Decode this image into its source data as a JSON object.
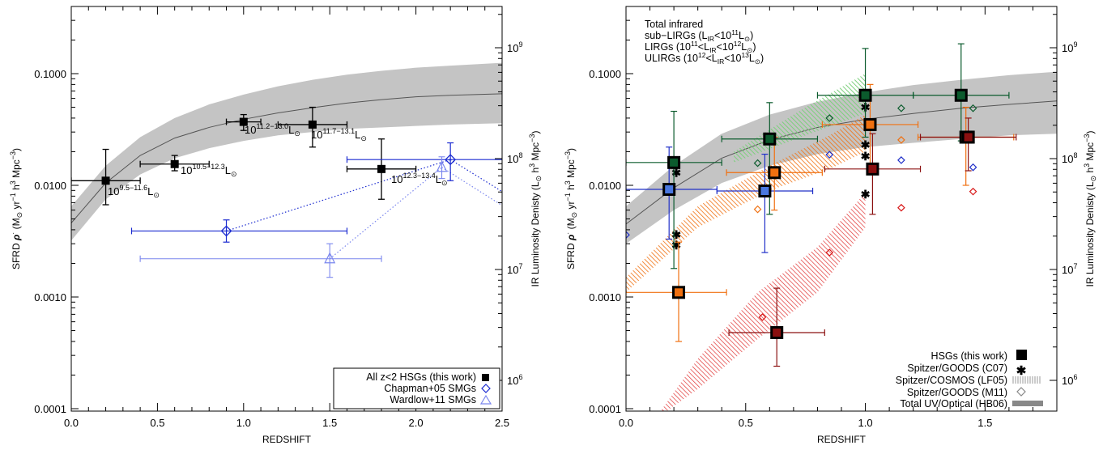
{
  "figure": {
    "left_xlabel": "REDSHIFT",
    "right_xlabel": "REDSHIFT",
    "ylabel": "SFRD",
    "ylabel_rho": "ρ",
    "ylabel_units": "(M",
    "ylabel_units2": " yr",
    "ylabel_units3": " h",
    "ylabel_units4": " Mpc",
    "y2label": "IR Luminosity Denisty (L",
    "y2label_units": " h",
    "y2label_units2": " Mpc",
    "sup_minus1": "−1",
    "sup_3": "3",
    "sup_minus3": "−3",
    "sun": "⊙",
    "sfrd_ticks": [
      "0.1000",
      "0.0100",
      "0.0010",
      "0.0001"
    ],
    "lum_ticks": [
      "10",
      "10",
      "10",
      "10"
    ],
    "lum_exps": [
      "9",
      "8",
      "7",
      "6"
    ],
    "left_xticks": [
      "0.0",
      "0.5",
      "1.0",
      "1.5",
      "2.0",
      "2.5"
    ],
    "right_xticks": [
      "0.0",
      "0.5",
      "1.0",
      "1.5"
    ]
  },
  "left_annotations": [
    {
      "base": "10",
      "sup": "9.5−11.6",
      "tail": "L"
    },
    {
      "base": "10",
      "sup": "10.5−12.3",
      "tail": "L"
    },
    {
      "base": "10",
      "sup": "11.2−13.0",
      "tail": "L"
    },
    {
      "base": "10",
      "sup": "11.7−13.1",
      "tail": "L"
    },
    {
      "base": "10",
      "sup": "12.3−13.4",
      "tail": "L"
    }
  ],
  "left_legend": {
    "all": "All z<2 HSGs (this work)",
    "chapman": "Chapman+05 SMGs",
    "wardlow": "Wardlow+11 SMGs"
  },
  "right_legend_top": {
    "total": "Total infrared",
    "sub_pre": "sub−LIRGs (L",
    "sub_mid": "<10",
    "sub_exp": "11",
    "sub_post": "L",
    "lirg_pre": "LIRGs (10",
    "lirg_exp1": "11",
    "lirg_mid": "<L",
    "lirg_mid2": "<10",
    "lirg_exp2": "12",
    "lirg_post": "L",
    "ulirg_pre": "ULIRGs (10",
    "ulirg_exp1": "12",
    "ulirg_mid": "<L",
    "ulirg_mid2": "<10",
    "ulirg_exp2": "13",
    "ulirg_post": "L",
    "ir_sub": "IR",
    "close": ")"
  },
  "right_legend_bottom": {
    "hsg": "HSGs (this work)",
    "c07": "Spitzer/GOODS (C07)",
    "lf05": "Spitzer/COSMOS (LF05)",
    "m11": "Spitzer/GOODS (M11)",
    "hb06": "Total UV/Optical (HB06)"
  },
  "colors": {
    "total": "#0b5b2d",
    "sub": "#2030c8",
    "lirg": "#f07010",
    "ulirg": "#d81818",
    "ulirg_dark": "#8b1010",
    "chapman": "#1a2ad0",
    "wardlow": "#7a86ee",
    "band": "#c4c4c4",
    "hsg_blue": "#4a78e0"
  },
  "chart_data": [
    {
      "type": "scatter",
      "xlabel": "REDSHIFT",
      "ylabel": "SFRD ρ (M⊙ yr−1 h3 Mpc−3)",
      "y2label": "IR Luminosity Denisty (L⊙ h3 Mpc−3)",
      "xlim": [
        0.0,
        2.5
      ],
      "ylim": [
        7e-05,
        0.4
      ],
      "yscale": "log",
      "band": {
        "x": [
          0.0,
          0.2,
          0.4,
          0.6,
          0.8,
          1.0,
          1.2,
          1.4,
          1.6,
          1.8,
          2.0,
          2.2,
          2.5
        ],
        "lower": [
          0.0032,
          0.0075,
          0.0125,
          0.0175,
          0.0215,
          0.025,
          0.028,
          0.03,
          0.032,
          0.033,
          0.034,
          0.035,
          0.036
        ],
        "upper": [
          0.0065,
          0.015,
          0.027,
          0.04,
          0.053,
          0.065,
          0.077,
          0.088,
          0.098,
          0.106,
          0.113,
          0.118,
          0.125
        ],
        "median": [
          0.0046,
          0.0105,
          0.0185,
          0.0265,
          0.033,
          0.039,
          0.0445,
          0.0495,
          0.0545,
          0.0585,
          0.062,
          0.064,
          0.066
        ]
      },
      "series": [
        {
          "name": "All z<2 HSGs (this work)",
          "points": [
            {
              "x": 0.2,
              "y": 0.011,
              "xerr": [
                0.2,
                0.2
              ],
              "yerr": [
                0.0067,
                0.021
              ]
            },
            {
              "x": 0.6,
              "y": 0.0155,
              "xerr": [
                0.2,
                0.2
              ],
              "yerr": [
                0.0135,
                0.0185
              ]
            },
            {
              "x": 1.0,
              "y": 0.037,
              "xerr": [
                0.1,
                0.1
              ],
              "yerr": [
                0.031,
                0.043
              ]
            },
            {
              "x": 1.4,
              "y": 0.035,
              "xerr": [
                0.2,
                0.2
              ],
              "yerr": [
                0.022,
                0.05
              ]
            },
            {
              "x": 1.8,
              "y": 0.014,
              "xerr": [
                0.2,
                0.2
              ],
              "yerr": [
                0.0075,
                0.026
              ]
            }
          ]
        },
        {
          "name": "Chapman+05 SMGs",
          "points": [
            {
              "x": 0.9,
              "y": 0.0039,
              "xerr": [
                0.55,
                0.7
              ],
              "yerr": [
                0.0031,
                0.0049
              ]
            },
            {
              "x": 2.2,
              "y": 0.017,
              "xerr": [
                0.6,
                0.6
              ],
              "yerr": [
                0.011,
                0.024
              ]
            }
          ]
        },
        {
          "name": "Wardlow+11 SMGs",
          "points": [
            {
              "x": 1.5,
              "y": 0.0022,
              "xerr": [
                1.1,
                0.3
              ],
              "yerr": [
                0.0015,
                0.003
              ]
            },
            {
              "x": 2.15,
              "y": 0.0145,
              "xerr": [
                0.0,
                0.0
              ],
              "yerr": [
                0.0115,
                0.018
              ]
            }
          ]
        }
      ]
    },
    {
      "type": "scatter",
      "xlabel": "REDSHIFT",
      "ylabel": "SFRD ρ (M⊙ yr−1 h3 Mpc−3)",
      "y2label": "IR Luminosity Denisty (L⊙ h3 Mpc−3)",
      "xlim": [
        0.0,
        1.8
      ],
      "ylim": [
        7e-05,
        0.4
      ],
      "yscale": "log",
      "band": {
        "x": [
          0.0,
          0.2,
          0.4,
          0.6,
          0.8,
          1.0,
          1.2,
          1.4,
          1.6,
          1.8
        ],
        "lower": [
          0.003,
          0.006,
          0.0105,
          0.015,
          0.019,
          0.022,
          0.024,
          0.026,
          0.028,
          0.029
        ],
        "upper": [
          0.0065,
          0.015,
          0.029,
          0.043,
          0.056,
          0.068,
          0.079,
          0.088,
          0.097,
          0.104
        ],
        "median": [
          0.0045,
          0.0095,
          0.0175,
          0.0255,
          0.033,
          0.039,
          0.044,
          0.049,
          0.053,
          0.057
        ]
      },
      "series": [
        {
          "name": "Total infrared",
          "points": [
            {
              "x": 0.2,
              "y": 0.016,
              "xerr": [
                0.2,
                0.2
              ],
              "yerr": [
                0.0018,
                0.046
              ]
            },
            {
              "x": 0.6,
              "y": 0.026,
              "xerr": [
                0.2,
                0.2
              ],
              "yerr": [
                0.0055,
                0.055
              ]
            },
            {
              "x": 1.0,
              "y": 0.064,
              "xerr": [
                0.2,
                0.2
              ],
              "yerr": [
                0.027,
                0.168
              ]
            },
            {
              "x": 1.4,
              "y": 0.064,
              "xerr": [
                0.2,
                0.2
              ],
              "yerr": [
                0.025,
                0.185
              ]
            }
          ]
        },
        {
          "name": "sub−LIRGs",
          "points": [
            {
              "x": 0.18,
              "y": 0.0092,
              "xerr": [
                0.18,
                0.2
              ],
              "yerr": [
                0.0033,
                0.022
              ]
            },
            {
              "x": 0.58,
              "y": 0.0089,
              "xerr": [
                0.2,
                0.2
              ],
              "yerr": [
                0.0025,
                0.019
              ]
            }
          ]
        },
        {
          "name": "LIRGs",
          "points": [
            {
              "x": 0.22,
              "y": 0.0011,
              "xerr": [
                0.22,
                0.2
              ],
              "yerr": [
                0.0004,
                0.0031
              ]
            },
            {
              "x": 0.62,
              "y": 0.013,
              "xerr": [
                0.2,
                0.2
              ],
              "yerr": [
                0.006,
                0.027
              ]
            },
            {
              "x": 1.02,
              "y": 0.035,
              "xerr": [
                0.2,
                0.2
              ],
              "yerr": [
                0.013,
                0.08
              ]
            },
            {
              "x": 1.42,
              "y": 0.027,
              "xerr": [
                0.2,
                0.2
              ],
              "yerr": [
                0.01,
                0.05
              ]
            }
          ]
        },
        {
          "name": "ULIRGs",
          "points": [
            {
              "x": 0.63,
              "y": 0.00048,
              "xerr": [
                0.2,
                0.2
              ],
              "yerr": [
                0.00024,
                0.0012
              ]
            },
            {
              "x": 1.03,
              "y": 0.014,
              "xerr": [
                0.2,
                0.2
              ],
              "yerr": [
                0.0055,
                0.029
              ]
            },
            {
              "x": 1.43,
              "y": 0.027,
              "xerr": [
                0.2,
                0.2
              ],
              "yerr": [
                0.0135,
                0.04
              ]
            }
          ]
        },
        {
          "name": "Spitzer/GOODS (C07)",
          "points": [
            {
              "x": 0.21,
              "y": 0.013,
              "color": "total"
            },
            {
              "x": 0.21,
              "y": 0.0036,
              "color": "lirg"
            },
            {
              "x": 0.21,
              "y": 0.0029,
              "color": "ulirg_dark"
            },
            {
              "x": 1.0,
              "y": 0.05,
              "color": "total"
            },
            {
              "x": 1.0,
              "y": 0.023,
              "color": "lirg"
            },
            {
              "x": 1.0,
              "y": 0.0182,
              "color": "sub"
            },
            {
              "x": 1.0,
              "y": 0.0083,
              "color": "ulirg_dark"
            }
          ]
        },
        {
          "name": "Spitzer/GOODS (M11)",
          "points": [
            {
              "x": 0.0,
              "y": 0.0036,
              "color": "sub"
            },
            {
              "x": 0.55,
              "y": 0.0061,
              "color": "lirg"
            },
            {
              "x": 0.55,
              "y": 0.0158,
              "color": "total"
            },
            {
              "x": 0.57,
              "y": 0.00066,
              "color": "ulirg"
            },
            {
              "x": 0.85,
              "y": 0.0188,
              "color": "sub"
            },
            {
              "x": 0.85,
              "y": 0.04,
              "color": "total"
            },
            {
              "x": 0.85,
              "y": 0.0025,
              "color": "ulirg"
            },
            {
              "x": 1.15,
              "y": 0.049,
              "color": "total"
            },
            {
              "x": 1.15,
              "y": 0.0255,
              "color": "lirg"
            },
            {
              "x": 1.15,
              "y": 0.0168,
              "color": "sub"
            },
            {
              "x": 1.15,
              "y": 0.0063,
              "color": "ulirg"
            },
            {
              "x": 1.45,
              "y": 0.049,
              "color": "total"
            },
            {
              "x": 1.45,
              "y": 0.0145,
              "color": "sub"
            },
            {
              "x": 1.45,
              "y": 0.0088,
              "color": "ulirg"
            }
          ]
        },
        {
          "name": "Spitzer/COSMOS (LF05)",
          "regions": [
            {
              "color": "total",
              "x": [
                0.45,
                0.75,
                1.0
              ],
              "lower": [
                0.016,
                0.028,
                0.044
              ],
              "upper": [
                0.02,
                0.05,
                0.1
              ]
            },
            {
              "color": "lirg",
              "x": [
                0.0,
                0.3,
                0.6,
                0.85,
                1.0
              ],
              "lower": [
                0.0011,
                0.0042,
                0.009,
                0.014,
                0.02
              ],
              "upper": [
                0.0015,
                0.0065,
                0.015,
                0.028,
                0.043
              ]
            },
            {
              "color": "ulirg",
              "x": [
                0.12,
                0.3,
                0.55,
                0.8,
                1.0
              ],
              "lower": [
                8e-05,
                0.00015,
                0.00042,
                0.0011,
                0.0042
              ],
              "upper": [
                8e-05,
                0.00028,
                0.0011,
                0.0028,
                0.0086
              ]
            }
          ]
        }
      ]
    }
  ]
}
